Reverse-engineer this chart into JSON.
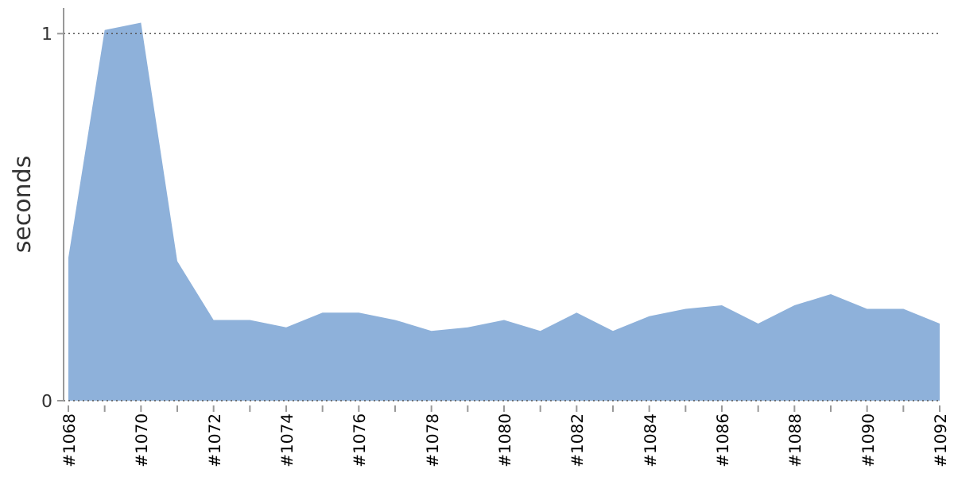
{
  "chart_data": {
    "type": "area",
    "ylabel": "seconds",
    "categories": [
      "#1068",
      null,
      "#1070",
      null,
      "#1072",
      null,
      "#1074",
      null,
      "#1076",
      null,
      "#1078",
      null,
      "#1080",
      null,
      "#1082",
      null,
      "#1084",
      null,
      "#1086",
      null,
      "#1088",
      null,
      "#1090",
      null,
      "#1092"
    ],
    "series": [
      {
        "color": "#8eb1da",
        "values": [
          0.39,
          1.01,
          1.03,
          0.38,
          0.22,
          0.22,
          0.2,
          0.24,
          0.24,
          0.22,
          0.19,
          0.2,
          0.22,
          0.19,
          0.24,
          0.19,
          0.23,
          0.25,
          0.26,
          0.21,
          0.26,
          0.29,
          0.25,
          0.25,
          0.21
        ]
      }
    ],
    "ylim": [
      0,
      1.07
    ],
    "yticks": [
      0,
      1
    ],
    "grid": "y",
    "line_style": "dotted"
  }
}
